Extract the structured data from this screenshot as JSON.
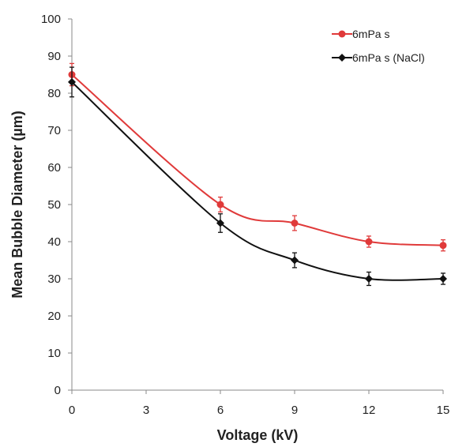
{
  "chart_data": {
    "type": "line",
    "xlabel": "Voltage (kV)",
    "ylabel": "Mean Bubble Diameter (µm)",
    "x": [
      0,
      6,
      9,
      12,
      15
    ],
    "xticks": [
      0,
      3,
      6,
      9,
      12,
      15
    ],
    "yticks": [
      0,
      10,
      20,
      30,
      40,
      50,
      60,
      70,
      80,
      90,
      100
    ],
    "xlim": [
      0,
      15
    ],
    "ylim": [
      0,
      100
    ],
    "grid": false,
    "legend_position": "top-right",
    "smoothed": true,
    "series": [
      {
        "name": "6mPa s",
        "marker": "circle",
        "color": "#e03a3a",
        "values": [
          85,
          50,
          45,
          40,
          39
        ],
        "errors": [
          3,
          2,
          2,
          1.5,
          1.5
        ]
      },
      {
        "name": "6mPa s (NaCl)",
        "marker": "diamond",
        "color": "#111111",
        "values": [
          83,
          45,
          35,
          30,
          30
        ],
        "errors": [
          4,
          2.5,
          2,
          1.8,
          1.5
        ]
      }
    ]
  }
}
